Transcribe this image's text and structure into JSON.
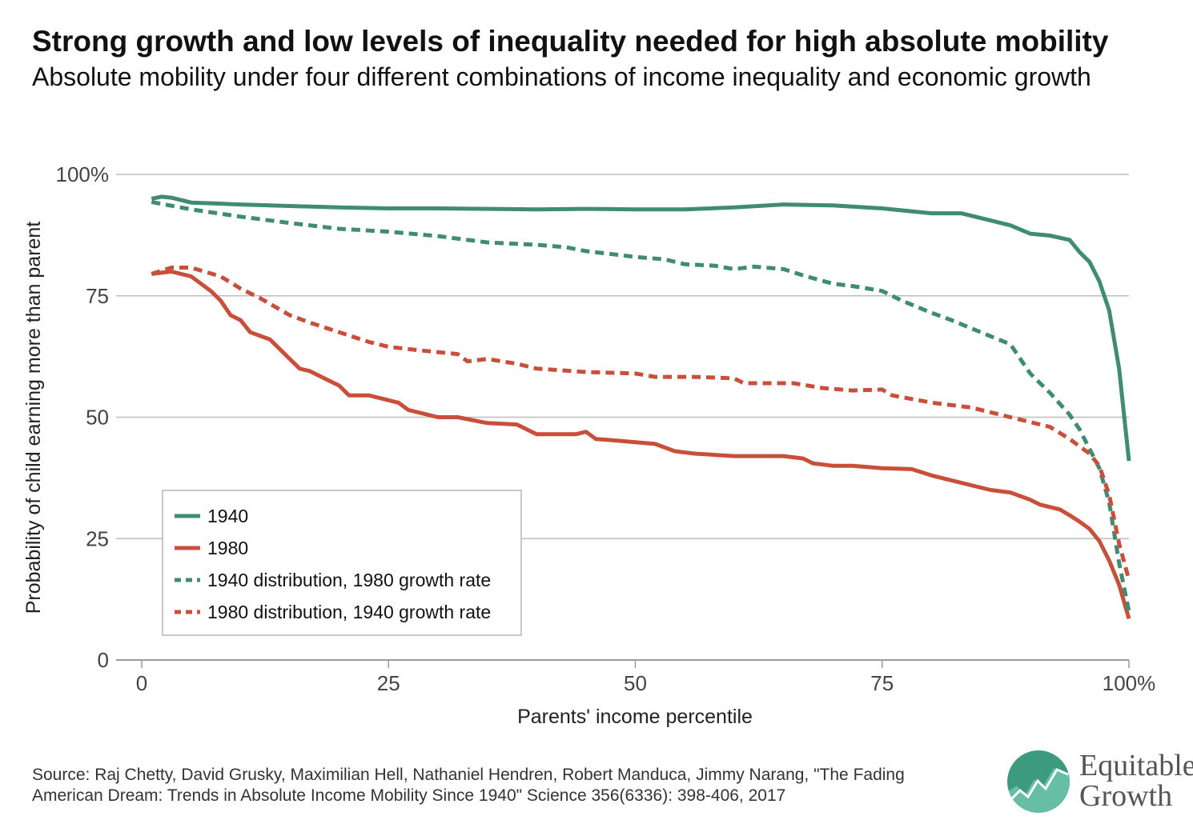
{
  "title": "Strong growth and low levels of inequality needed for high absolute mobility",
  "subtitle": "Absolute mobility under four different combinations of income inequality and economic growth",
  "source": "Source: Raj Chetty, David Grusky, Maximilian Hell, Nathaniel Hendren, Robert Manduca, Jimmy Narang, \"The Fading American Dream: Trends in Absolute Income Mobility Since 1940\" Science 356(6336): 398-406, 2017",
  "logo": {
    "line1": "Equitable",
    "line2": "Growth"
  },
  "colors": {
    "green": "#3f8c72",
    "red": "#c8503a",
    "grid": "#bdbdbd",
    "axis": "#9a9a9a"
  },
  "chart_data": {
    "type": "line",
    "xlabel": "Parents' income percentile",
    "ylabel": "Probability of child earning more than parent",
    "xlim": [
      0,
      100
    ],
    "ylim": [
      0,
      100
    ],
    "xticks": [
      "0",
      "25",
      "50",
      "75",
      "100%"
    ],
    "xtick_values": [
      0,
      25,
      50,
      75,
      100
    ],
    "yticks": [
      "0",
      "25",
      "50",
      "75",
      "100%"
    ],
    "ytick_values": [
      0,
      25,
      50,
      75,
      100
    ],
    "grid": true,
    "legend_position": "bottom-left",
    "series": [
      {
        "name": "1940",
        "color": "#3f8c72",
        "dash": "solid",
        "points": [
          [
            1,
            95
          ],
          [
            2,
            95.4
          ],
          [
            3,
            95.2
          ],
          [
            5,
            94.2
          ],
          [
            10,
            93.8
          ],
          [
            15,
            93.5
          ],
          [
            20,
            93.2
          ],
          [
            25,
            93
          ],
          [
            30,
            93
          ],
          [
            35,
            92.9
          ],
          [
            40,
            92.8
          ],
          [
            45,
            92.9
          ],
          [
            50,
            92.8
          ],
          [
            55,
            92.8
          ],
          [
            60,
            93.2
          ],
          [
            65,
            93.8
          ],
          [
            70,
            93.6
          ],
          [
            75,
            93
          ],
          [
            80,
            92
          ],
          [
            83,
            92
          ],
          [
            85,
            91
          ],
          [
            88,
            89.5
          ],
          [
            90,
            87.8
          ],
          [
            92,
            87.4
          ],
          [
            94,
            86.5
          ],
          [
            95,
            84
          ],
          [
            96,
            82
          ],
          [
            97,
            78
          ],
          [
            98,
            72
          ],
          [
            99,
            60
          ],
          [
            100,
            41
          ]
        ]
      },
      {
        "name": "1980",
        "color": "#c8503a",
        "dash": "solid",
        "points": [
          [
            1,
            79.5
          ],
          [
            3,
            80
          ],
          [
            5,
            79
          ],
          [
            7,
            76
          ],
          [
            8,
            74
          ],
          [
            9,
            71
          ],
          [
            10,
            70
          ],
          [
            11,
            67.5
          ],
          [
            13,
            66
          ],
          [
            15,
            62
          ],
          [
            16,
            60
          ],
          [
            17,
            59.5
          ],
          [
            19,
            57.5
          ],
          [
            20,
            56.5
          ],
          [
            21,
            54.5
          ],
          [
            23,
            54.5
          ],
          [
            25,
            53.5
          ],
          [
            26,
            53
          ],
          [
            27,
            51.5
          ],
          [
            30,
            50
          ],
          [
            32,
            50
          ],
          [
            35,
            48.8
          ],
          [
            38,
            48.5
          ],
          [
            40,
            46.5
          ],
          [
            44,
            46.5
          ],
          [
            45,
            47
          ],
          [
            46,
            45.5
          ],
          [
            48,
            45.2
          ],
          [
            52,
            44.5
          ],
          [
            54,
            43
          ],
          [
            56,
            42.5
          ],
          [
            60,
            42
          ],
          [
            65,
            42
          ],
          [
            67,
            41.5
          ],
          [
            68,
            40.5
          ],
          [
            70,
            40
          ],
          [
            72,
            40
          ],
          [
            75,
            39.5
          ],
          [
            78,
            39.3
          ],
          [
            80,
            38
          ],
          [
            82,
            37
          ],
          [
            84,
            36
          ],
          [
            86,
            35
          ],
          [
            88,
            34.5
          ],
          [
            90,
            33
          ],
          [
            91,
            32
          ],
          [
            92,
            31.5
          ],
          [
            93,
            31
          ],
          [
            94,
            29.8
          ],
          [
            95,
            28.5
          ],
          [
            96,
            27
          ],
          [
            97,
            24.5
          ],
          [
            98,
            20.5
          ],
          [
            99,
            15.5
          ],
          [
            100,
            8.5
          ]
        ]
      },
      {
        "name": "1940 distribution, 1980 growth rate",
        "color": "#3f8c72",
        "dash": "dashed",
        "points": [
          [
            1,
            94.3
          ],
          [
            5,
            92.8
          ],
          [
            10,
            91.3
          ],
          [
            15,
            90
          ],
          [
            20,
            88.8
          ],
          [
            25,
            88.2
          ],
          [
            30,
            87.3
          ],
          [
            35,
            86
          ],
          [
            40,
            85.5
          ],
          [
            43,
            85
          ],
          [
            45,
            84.2
          ],
          [
            48,
            83.5
          ],
          [
            50,
            83
          ],
          [
            53,
            82.5
          ],
          [
            55,
            81.5
          ],
          [
            58,
            81.2
          ],
          [
            60,
            80.5
          ],
          [
            62,
            81
          ],
          [
            65,
            80.5
          ],
          [
            67,
            79.2
          ],
          [
            70,
            77.5
          ],
          [
            72,
            77
          ],
          [
            75,
            76
          ],
          [
            77,
            74
          ],
          [
            80,
            71.5
          ],
          [
            82,
            70
          ],
          [
            85,
            67.5
          ],
          [
            88,
            65
          ],
          [
            90,
            59
          ],
          [
            92,
            55
          ],
          [
            94,
            50.5
          ],
          [
            95,
            47.5
          ],
          [
            96,
            43.5
          ],
          [
            97,
            39.5
          ],
          [
            98,
            32.5
          ],
          [
            99,
            20
          ],
          [
            100,
            10
          ]
        ]
      },
      {
        "name": "1980 distribution, 1940 growth rate",
        "color": "#c8503a",
        "dash": "dashed",
        "points": [
          [
            1,
            79.5
          ],
          [
            3,
            80.8
          ],
          [
            5,
            80.8
          ],
          [
            8,
            79
          ],
          [
            10,
            76.5
          ],
          [
            12,
            74.5
          ],
          [
            15,
            71
          ],
          [
            17,
            69.5
          ],
          [
            20,
            67.5
          ],
          [
            23,
            65.5
          ],
          [
            25,
            64.5
          ],
          [
            28,
            63.8
          ],
          [
            32,
            63
          ],
          [
            33,
            61.5
          ],
          [
            35,
            62
          ],
          [
            38,
            61
          ],
          [
            40,
            60
          ],
          [
            45,
            59.3
          ],
          [
            50,
            59
          ],
          [
            52,
            58.3
          ],
          [
            56,
            58.3
          ],
          [
            60,
            58
          ],
          [
            61,
            57
          ],
          [
            66,
            57
          ],
          [
            69,
            56
          ],
          [
            72,
            55.5
          ],
          [
            75,
            55.7
          ],
          [
            76,
            54.5
          ],
          [
            80,
            53
          ],
          [
            84,
            52
          ],
          [
            86,
            51
          ],
          [
            88,
            50
          ],
          [
            90,
            49
          ],
          [
            92,
            48
          ],
          [
            94,
            45.5
          ],
          [
            96,
            42.5
          ],
          [
            97,
            40
          ],
          [
            98,
            34
          ],
          [
            99,
            24
          ],
          [
            100,
            16.5
          ]
        ]
      }
    ]
  }
}
